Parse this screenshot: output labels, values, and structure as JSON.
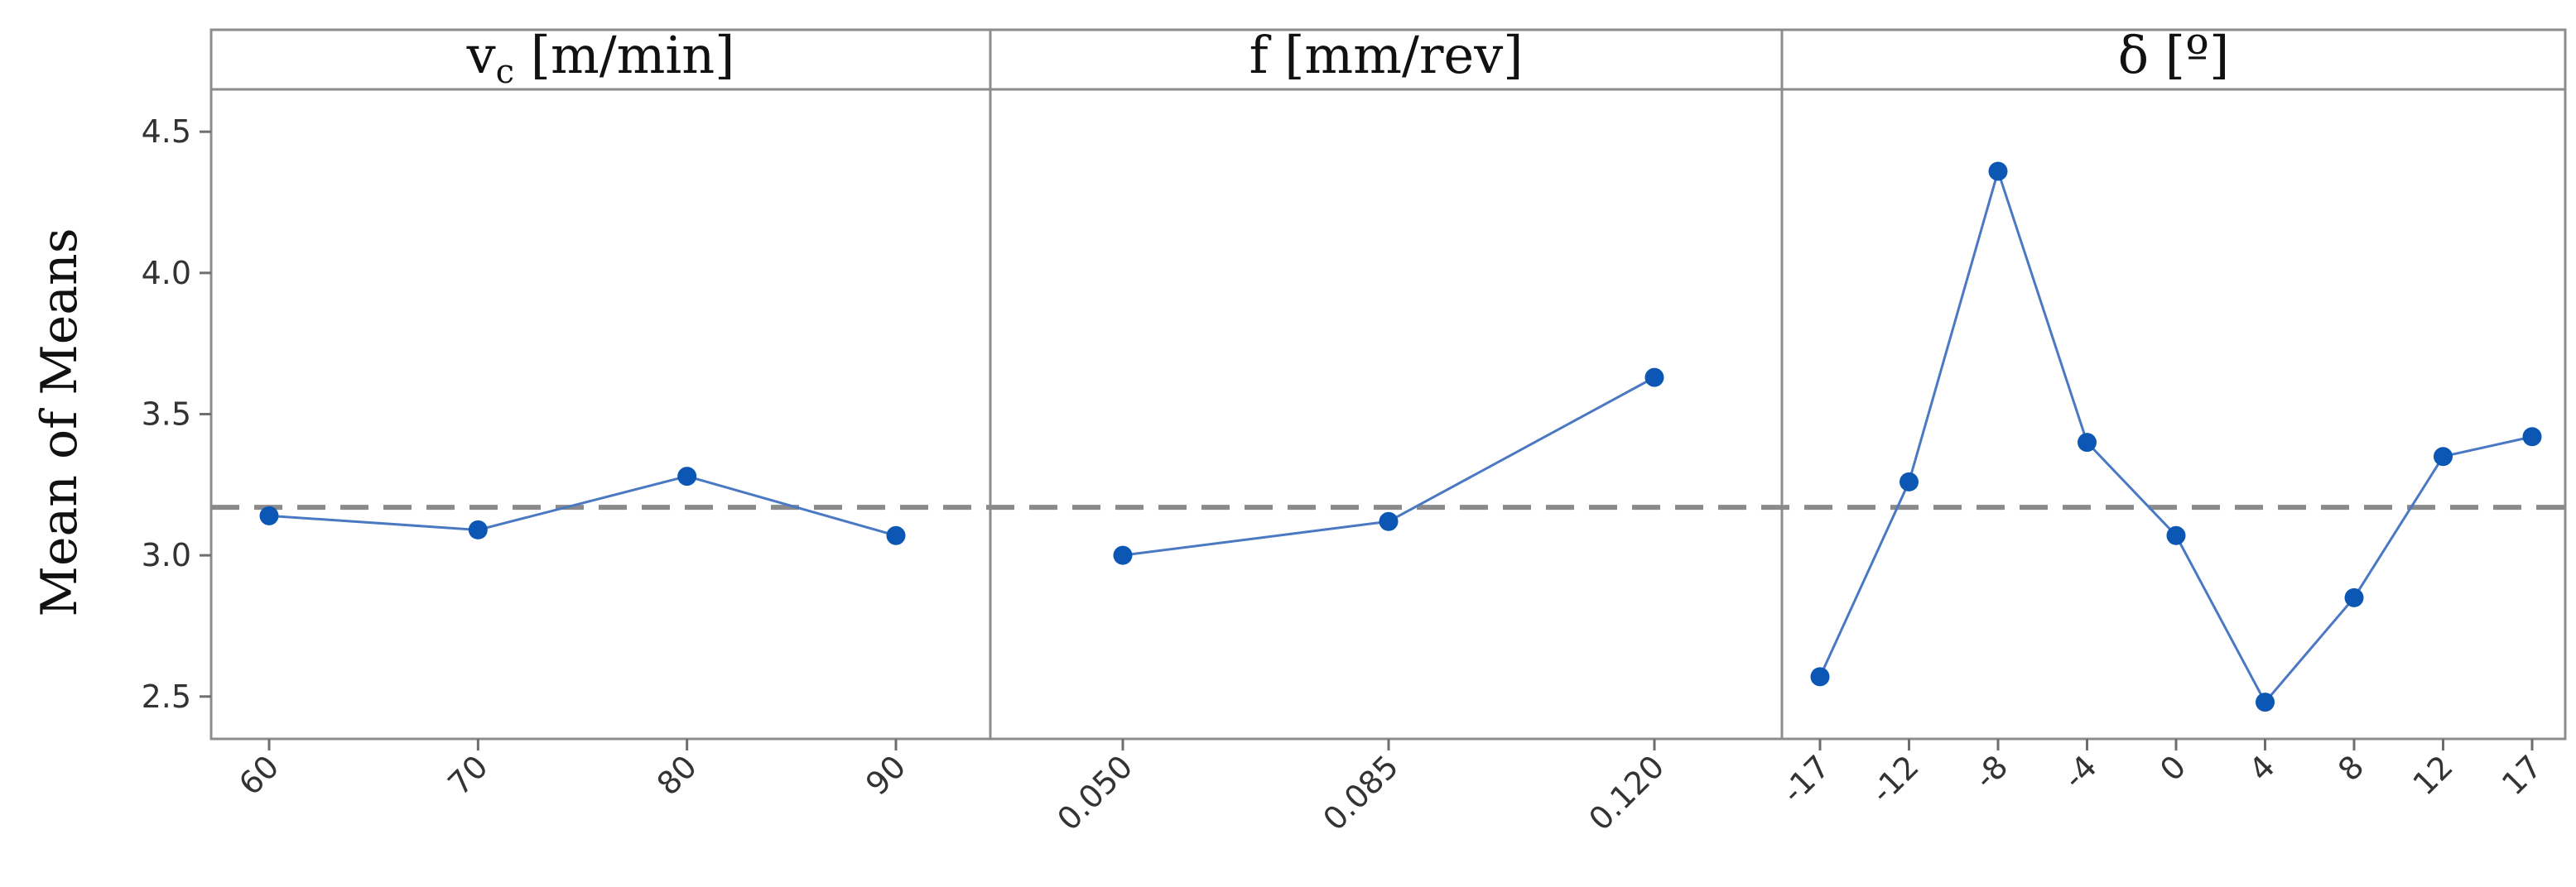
{
  "chart_data": {
    "type": "line",
    "ylabel": "Mean of Means",
    "ylim": [
      2.35,
      4.65
    ],
    "yticks": [
      "2.5",
      "3.0",
      "3.5",
      "4.0",
      "4.5"
    ],
    "reference_line": 3.17,
    "colors": {
      "series": "#4a78c2",
      "marker": "#0b57b3",
      "reference": "#8a8a8a"
    },
    "panels": [
      {
        "title": "v",
        "title_sub": "c",
        "title_rest": " [m/min]",
        "categories": [
          "60",
          "70",
          "80",
          "90"
        ],
        "values": [
          3.14,
          3.09,
          3.28,
          3.07
        ]
      },
      {
        "title": "f [mm/rev]",
        "title_sub": "",
        "title_rest": "",
        "categories": [
          "0.050",
          "0.085",
          "0.120"
        ],
        "values": [
          3.0,
          3.12,
          3.63
        ]
      },
      {
        "title": "δ [",
        "title_sub": "",
        "title_rest": "º]",
        "categories": [
          "-17",
          "-12",
          "-8",
          "-4",
          "0",
          "4",
          "8",
          "12",
          "17"
        ],
        "values": [
          2.57,
          3.26,
          4.36,
          3.4,
          3.07,
          2.48,
          2.85,
          3.35,
          3.42
        ]
      }
    ]
  }
}
